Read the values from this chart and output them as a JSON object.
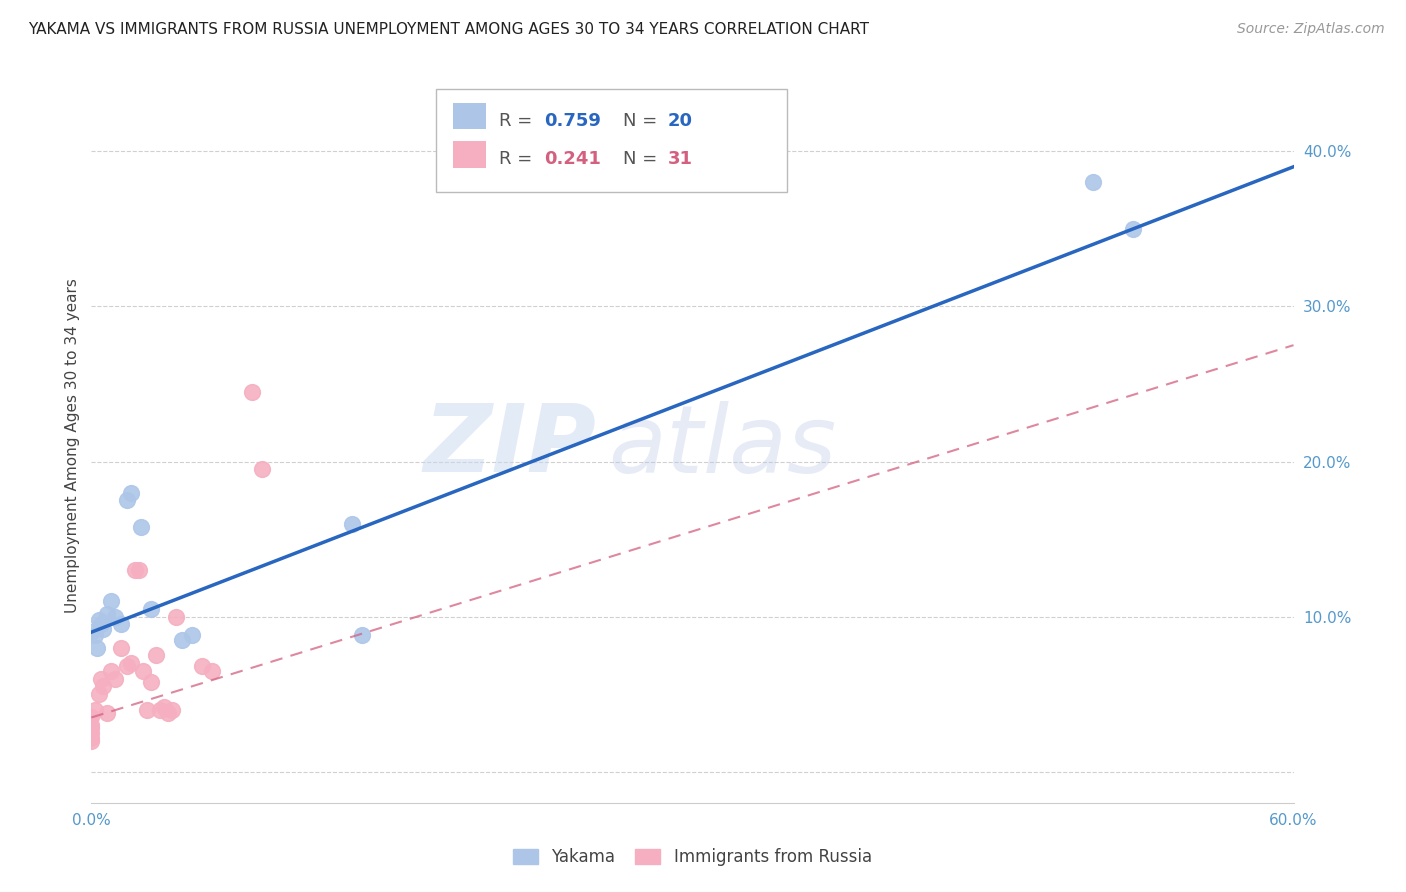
{
  "title": "YAKAMA VS IMMIGRANTS FROM RUSSIA UNEMPLOYMENT AMONG AGES 30 TO 34 YEARS CORRELATION CHART",
  "source": "Source: ZipAtlas.com",
  "ylabel": "Unemployment Among Ages 30 to 34 years",
  "xlim": [
    0.0,
    0.6
  ],
  "ylim": [
    -0.02,
    0.44
  ],
  "xticks": [
    0.0,
    0.1,
    0.2,
    0.3,
    0.4,
    0.5,
    0.6
  ],
  "yticks": [
    0.0,
    0.1,
    0.2,
    0.3,
    0.4
  ],
  "ytick_labels": [
    "",
    "10.0%",
    "20.0%",
    "30.0%",
    "40.0%"
  ],
  "xtick_labels": [
    "0.0%",
    "",
    "",
    "",
    "",
    "",
    "60.0%"
  ],
  "watermark_zip": "ZIP",
  "watermark_atlas": "atlas",
  "legend_r1": "0.759",
  "legend_n1": "20",
  "legend_r2": "0.241",
  "legend_n2": "31",
  "yakama_color": "#adc6e8",
  "russia_color": "#f5afc0",
  "line1_color": "#2866c0",
  "line2_color": "#d46080",
  "line2_dash": [
    6,
    4
  ],
  "yakama_x": [
    0.0,
    0.002,
    0.003,
    0.004,
    0.005,
    0.006,
    0.008,
    0.01,
    0.012,
    0.015,
    0.018,
    0.02,
    0.025,
    0.03,
    0.045,
    0.05,
    0.13,
    0.135,
    0.5,
    0.52
  ],
  "yakama_y": [
    0.09,
    0.088,
    0.08,
    0.098,
    0.095,
    0.092,
    0.102,
    0.11,
    0.1,
    0.095,
    0.175,
    0.18,
    0.158,
    0.105,
    0.085,
    0.088,
    0.16,
    0.088,
    0.38,
    0.35
  ],
  "russia_x": [
    0.0,
    0.0,
    0.0,
    0.0,
    0.0,
    0.0,
    0.002,
    0.004,
    0.005,
    0.006,
    0.008,
    0.01,
    0.012,
    0.015,
    0.018,
    0.02,
    0.022,
    0.024,
    0.026,
    0.028,
    0.03,
    0.032,
    0.034,
    0.036,
    0.038,
    0.04,
    0.042,
    0.055,
    0.06,
    0.08,
    0.085
  ],
  "russia_y": [
    0.02,
    0.022,
    0.025,
    0.028,
    0.03,
    0.035,
    0.04,
    0.05,
    0.06,
    0.055,
    0.038,
    0.065,
    0.06,
    0.08,
    0.068,
    0.07,
    0.13,
    0.13,
    0.065,
    0.04,
    0.058,
    0.075,
    0.04,
    0.042,
    0.038,
    0.04,
    0.1,
    0.068,
    0.065,
    0.245,
    0.195
  ],
  "line1_x0": 0.0,
  "line1_y0": 0.09,
  "line1_x1": 0.6,
  "line1_y1": 0.39,
  "line2_x0": 0.0,
  "line2_y0": 0.035,
  "line2_x1": 0.6,
  "line2_y1": 0.275,
  "background_color": "#ffffff",
  "grid_color": "#d0d0d0"
}
